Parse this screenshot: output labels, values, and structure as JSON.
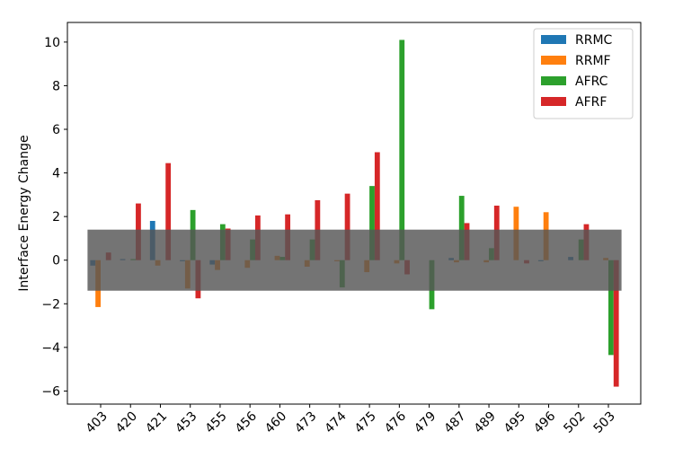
{
  "chart_data": {
    "type": "bar",
    "title": "",
    "xlabel": "",
    "ylabel": "Interface Energy Change",
    "ylim": [
      -6.6,
      10.9
    ],
    "yticks": [
      -6,
      -4,
      -2,
      0,
      2,
      4,
      6,
      8,
      10
    ],
    "categories": [
      "403",
      "420",
      "421",
      "453",
      "455",
      "456",
      "460",
      "473",
      "474",
      "475",
      "476",
      "479",
      "487",
      "489",
      "495",
      "496",
      "502",
      "503"
    ],
    "series": [
      {
        "name": "RRMC",
        "color": "#1f77b4",
        "values": [
          -0.25,
          0.05,
          1.8,
          -0.05,
          -0.2,
          0.0,
          0.0,
          0.0,
          0.0,
          0.0,
          0.0,
          0.0,
          0.1,
          0.0,
          0.0,
          -0.05,
          0.15,
          0.0
        ]
      },
      {
        "name": "RRMF",
        "color": "#ff7f0e",
        "values": [
          -2.15,
          0.0,
          -0.25,
          -1.3,
          -0.45,
          -0.35,
          0.2,
          -0.3,
          -0.05,
          -0.55,
          -0.15,
          0.0,
          -0.1,
          -0.1,
          2.45,
          2.2,
          0.0,
          0.1
        ]
      },
      {
        "name": "AFRC",
        "color": "#2ca02c",
        "values": [
          0.0,
          0.05,
          0.0,
          2.3,
          1.65,
          0.95,
          0.15,
          0.95,
          -1.25,
          3.4,
          10.1,
          -2.25,
          2.95,
          0.55,
          0.0,
          0.0,
          0.95,
          -4.35
        ]
      },
      {
        "name": "AFRF",
        "color": "#d62728",
        "values": [
          0.35,
          2.6,
          4.45,
          -1.75,
          1.45,
          2.05,
          2.1,
          2.75,
          3.05,
          4.95,
          -0.65,
          0.0,
          1.7,
          2.5,
          -0.15,
          0.0,
          1.65,
          -5.8
        ]
      }
    ],
    "band": {
      "low": -1.4,
      "high": 1.4,
      "color": "#555555"
    },
    "legend_position": "top-right",
    "grid": false
  }
}
